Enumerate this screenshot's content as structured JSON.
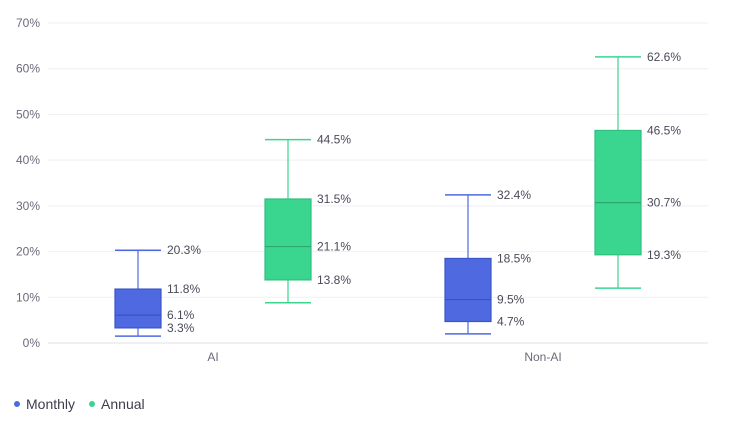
{
  "chart_data": {
    "type": "boxplot",
    "categories": [
      "AI",
      "Non-AI"
    ],
    "ylim": [
      0,
      70
    ],
    "yticks": [
      "0%",
      "10%",
      "20%",
      "30%",
      "40%",
      "50%",
      "60%",
      "70%"
    ],
    "grid": true,
    "legend_position": "bottom-left",
    "series": [
      {
        "name": "Monthly",
        "color": "#4f6ae0",
        "boxes": [
          {
            "min": 1.5,
            "q1": 3.3,
            "median": 6.1,
            "q3": 11.8,
            "max": 20.3,
            "labels": {
              "max": "20.3%",
              "q3": "11.8%",
              "median": "6.1%",
              "q1": "3.3%"
            }
          },
          {
            "min": 2.0,
            "q1": 4.7,
            "median": 9.5,
            "q3": 18.5,
            "max": 32.4,
            "labels": {
              "max": "32.4%",
              "q3": "18.5%",
              "median": "9.5%",
              "q1": "4.7%"
            }
          }
        ]
      },
      {
        "name": "Annual",
        "color": "#3ad690",
        "boxes": [
          {
            "min": 8.8,
            "q1": 13.8,
            "median": 21.1,
            "q3": 31.5,
            "max": 44.5,
            "labels": {
              "max": "44.5%",
              "q3": "31.5%",
              "median": "21.1%",
              "q1": "13.8%"
            }
          },
          {
            "min": 12.0,
            "q1": 19.3,
            "median": 30.7,
            "q3": 46.5,
            "max": 62.6,
            "labels": {
              "max": "62.6%",
              "q3": "46.5%",
              "median": "30.7%",
              "q1": "19.3%"
            }
          }
        ]
      }
    ]
  }
}
